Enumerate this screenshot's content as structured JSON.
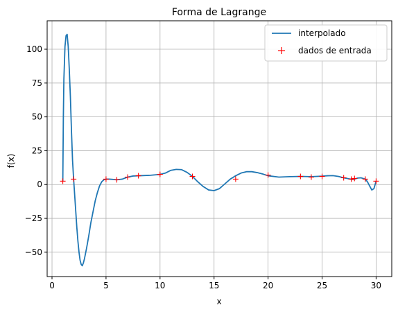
{
  "chart_data": {
    "type": "line",
    "title": "Forma de Lagrange",
    "xlabel": "x",
    "ylabel": "f(x)",
    "xlim": [
      -0.45,
      31.45
    ],
    "ylim": [
      -68,
      121
    ],
    "xticks": [
      0,
      5,
      10,
      15,
      20,
      25,
      30
    ],
    "yticks": [
      -50,
      -25,
      0,
      25,
      50,
      75,
      100
    ],
    "grid": true,
    "legend_position": "top-right",
    "series": [
      {
        "name": "interpolado",
        "kind": "line",
        "color": "#1f77b4",
        "x": [
          1.0,
          1.05,
          1.1,
          1.2,
          1.3,
          1.4,
          1.5,
          1.6,
          1.7,
          1.8,
          1.9,
          2.0,
          2.1,
          2.2,
          2.3,
          2.4,
          2.5,
          2.6,
          2.7,
          2.8,
          2.9,
          3.0,
          3.2,
          3.4,
          3.6,
          3.8,
          4.0,
          4.2,
          4.4,
          4.6,
          4.8,
          5.0,
          5.3,
          5.6,
          6.0,
          6.5,
          7.0,
          7.5,
          8.0,
          9.0,
          10.0,
          10.5,
          11.0,
          11.5,
          12.0,
          12.5,
          13.0,
          13.5,
          14.0,
          14.5,
          15.0,
          15.5,
          16.0,
          16.5,
          17.0,
          17.5,
          18.0,
          18.5,
          19.0,
          19.5,
          20.0,
          21.0,
          22.0,
          23.0,
          24.0,
          25.0,
          25.5,
          26.0,
          26.5,
          27.0,
          27.5,
          27.8,
          28.0,
          28.3,
          28.6,
          29.0,
          29.2,
          29.4,
          29.6,
          29.8,
          30.0
        ],
        "y": [
          2.5,
          50,
          78,
          102,
          110,
          111,
          102,
          85,
          65,
          40,
          18,
          4,
          -8,
          -20,
          -32,
          -42,
          -50,
          -56,
          -59,
          -60,
          -58,
          -55,
          -47,
          -38,
          -28,
          -20,
          -12,
          -6,
          -1,
          2,
          3.5,
          4,
          4,
          3.8,
          3.5,
          4,
          5.5,
          6.3,
          6.5,
          6.8,
          7.5,
          8.5,
          10.5,
          11.2,
          11,
          9,
          6,
          2,
          -1.5,
          -4,
          -4.5,
          -3,
          0.5,
          4,
          6.5,
          8.5,
          9.5,
          9.5,
          8.8,
          7.8,
          6.5,
          5.5,
          5.8,
          6,
          5.8,
          6.2,
          6.5,
          6.6,
          6,
          5,
          4.2,
          3.8,
          4,
          4.8,
          5,
          4,
          2,
          -1,
          -4,
          -3,
          2.5
        ]
      },
      {
        "name": "dados de entrada",
        "kind": "marker",
        "color": "#ff0000",
        "x": [
          1,
          2,
          5,
          6,
          7,
          8,
          10,
          13,
          17,
          20,
          23,
          24,
          25,
          27,
          27.7,
          28,
          29,
          30
        ],
        "y": [
          2.5,
          4,
          4,
          3.5,
          5.5,
          6.5,
          7.5,
          6,
          4,
          7,
          6,
          5.5,
          6,
          5,
          4,
          4.5,
          4,
          2.5
        ]
      }
    ]
  }
}
